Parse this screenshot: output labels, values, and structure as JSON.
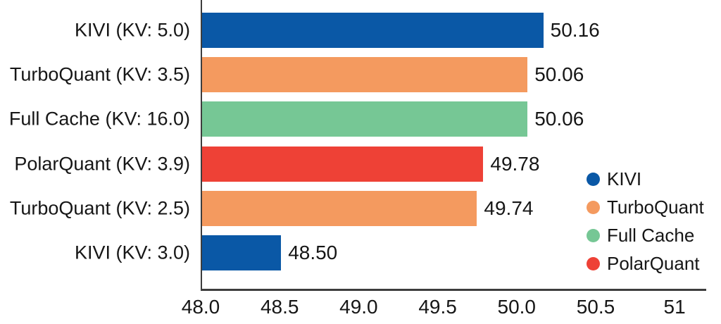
{
  "chart_data": {
    "type": "bar",
    "orientation": "horizontal",
    "title": "",
    "xlabel": "",
    "ylabel": "",
    "grid": false,
    "categories": [
      "KIVI (KV: 5.0)",
      "TurboQuant (KV: 3.5)",
      "Full Cache (KV: 16.0)",
      "PolarQuant (KV: 3.9)",
      "TurboQuant (KV: 2.5)",
      "KIVI (KV: 3.0)"
    ],
    "values": [
      50.16,
      50.06,
      50.06,
      49.78,
      49.74,
      48.5
    ],
    "value_labels": [
      "50.16",
      "50.06",
      "50.06",
      "49.78",
      "49.74",
      "48.50"
    ],
    "bar_series": [
      "KIVI",
      "TurboQuant",
      "Full Cache",
      "PolarQuant",
      "TurboQuant",
      "KIVI"
    ],
    "series": [
      {
        "name": "KIVI",
        "color": "#0a58a6"
      },
      {
        "name": "TurboQuant",
        "color": "#f49a5f"
      },
      {
        "name": "Full Cache",
        "color": "#76c795"
      },
      {
        "name": "PolarQuant",
        "color": "#ee4136"
      }
    ],
    "xlim": [
      48.0,
      51.2
    ],
    "x_ticks": [
      "48.0",
      "48.5",
      "49.0",
      "49.5",
      "50.0",
      "50.5",
      "51"
    ],
    "legend": {
      "position": "lower right",
      "entries": [
        "KIVI",
        "TurboQuant",
        "Full Cache",
        "PolarQuant"
      ]
    },
    "axis_color": "#3d3d3d",
    "text_color": "#161616"
  }
}
